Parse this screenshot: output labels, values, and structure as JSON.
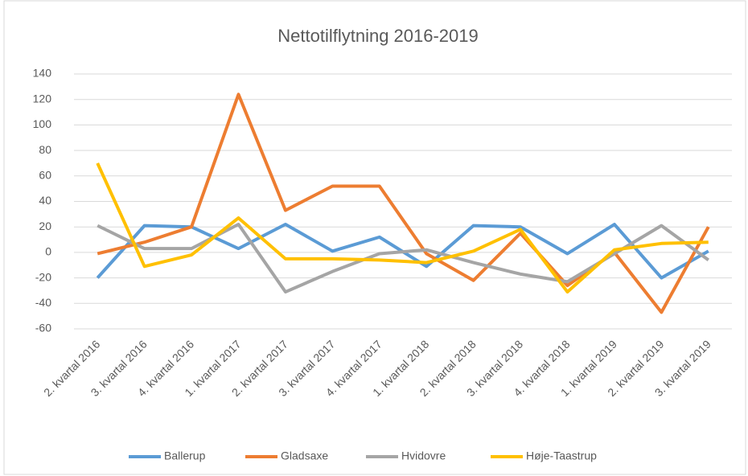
{
  "chart_data": {
    "type": "line",
    "title": "Nettotilflytning 2016-2019",
    "categories": [
      "2. kvartal 2016",
      "3. kvartal 2016",
      "4. kvartal 2016",
      "1. kvartal 2017",
      "2. kvartal 2017",
      "3. kvartal 2017",
      "4. kvartal 2017",
      "1. kvartal 2018",
      "2. kvartal 2018",
      "3. kvartal 2018",
      "4. kvartal 2018",
      "1. kvartal 2019",
      "2. kvartal 2019",
      "3. kvartal 2019"
    ],
    "series": [
      {
        "name": "Ballerup",
        "color": "#5b9bd5",
        "values": [
          -20,
          21,
          20,
          3,
          22,
          1,
          12,
          -11,
          21,
          20,
          -1,
          22,
          -20,
          1
        ]
      },
      {
        "name": "Gladsaxe",
        "color": "#ed7d31",
        "values": [
          -1,
          8,
          20,
          124,
          33,
          52,
          52,
          -1,
          -22,
          15,
          -26,
          0,
          -47,
          20
        ]
      },
      {
        "name": "Hvidovre",
        "color": "#a5a5a5",
        "values": [
          21,
          3,
          3,
          22,
          -31,
          -15,
          -1,
          2,
          -8,
          -17,
          -23,
          -1,
          21,
          -6
        ]
      },
      {
        "name": "Høje-Taastrup",
        "color": "#ffc000",
        "values": [
          70,
          -11,
          -2,
          27,
          -5,
          -5,
          -6,
          -8,
          1,
          18,
          -31,
          2,
          7,
          8
        ]
      }
    ],
    "ylim": [
      -60,
      140
    ],
    "yticks": [
      -60,
      -40,
      -20,
      0,
      20,
      40,
      60,
      80,
      100,
      120,
      140
    ],
    "grid": true,
    "legend": "bottom"
  }
}
